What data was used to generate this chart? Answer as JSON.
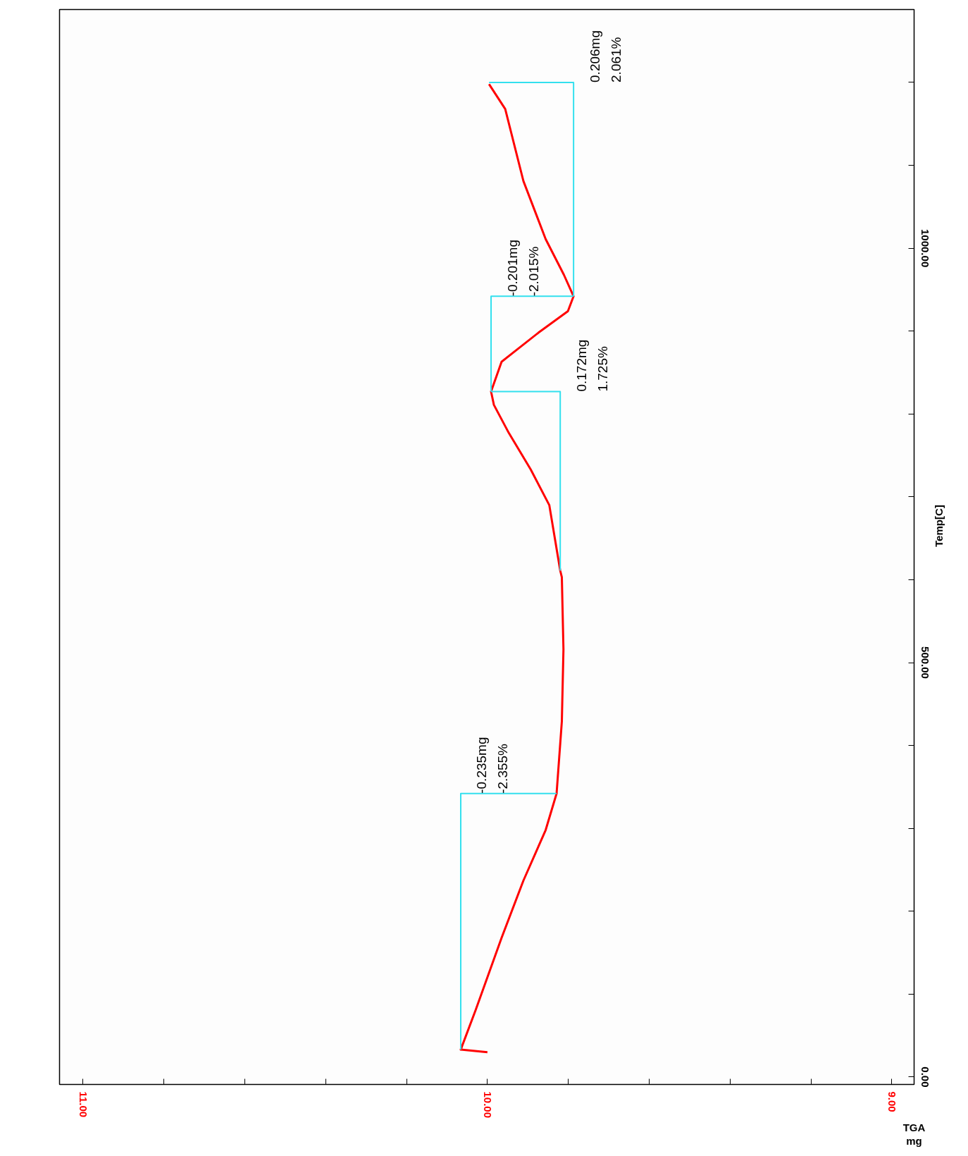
{
  "chart_data": {
    "type": "line",
    "xlabel": "TGA\nmg",
    "ylabel": "Temp[C]",
    "xlim": [
      11.058,
      8.945
    ],
    "ylim": [
      -9,
      1288
    ],
    "xticks": [
      {
        "value": 11,
        "label": "11.00"
      },
      {
        "value": 10.8,
        "label": null
      },
      {
        "value": 10.6,
        "label": null
      },
      {
        "value": 10.4,
        "label": null
      },
      {
        "value": 10.2,
        "label": null
      },
      {
        "value": 10,
        "label": "10.00"
      },
      {
        "value": 9.8,
        "label": null
      },
      {
        "value": 9.6,
        "label": null
      },
      {
        "value": 9.4,
        "label": null
      },
      {
        "value": 9.2,
        "label": null
      },
      {
        "value": 9,
        "label": "9.00"
      }
    ],
    "yticks": [
      {
        "value": 0,
        "label": "0.00"
      },
      {
        "value": 100,
        "label": null
      },
      {
        "value": 200,
        "label": null
      },
      {
        "value": 300,
        "label": null
      },
      {
        "value": 400,
        "label": null
      },
      {
        "value": 500,
        "label": "500.00"
      },
      {
        "value": 600,
        "label": null
      },
      {
        "value": 700,
        "label": null
      },
      {
        "value": 800,
        "label": null
      },
      {
        "value": 900,
        "label": null
      },
      {
        "value": 1000,
        "label": "1000.00"
      },
      {
        "value": 1100,
        "label": null
      },
      {
        "value": 1200,
        "label": null
      }
    ],
    "grid": false,
    "marker": "none",
    "line_style": "solid",
    "series": [
      {
        "color": "#ff0000",
        "x": [
          10.0,
          10.066,
          10.029,
          9.965,
          9.911,
          9.856,
          9.829,
          9.816,
          9.812,
          9.816,
          9.82,
          9.847,
          9.893,
          9.947,
          9.984,
          9.991,
          9.965,
          9.874,
          9.801,
          9.787,
          9.811,
          9.856,
          9.911,
          9.956,
          9.996
        ],
        "values": [
          30,
          33,
          81,
          168,
          237,
          298,
          342,
          429,
          516,
          603,
          611,
          690,
          733,
          777,
          811,
          827,
          863,
          898,
          924,
          942,
          968,
          1011,
          1081,
          1168,
          1198
        ]
      },
      {
        "color": "#33e0ee",
        "x": [
          10.066,
          10.066,
          9.829
        ],
        "values": [
          33,
          342,
          342
        ]
      },
      {
        "color": "#33e0ee",
        "x": [
          9.82,
          9.82,
          9.991
        ],
        "values": [
          611,
          827,
          827
        ]
      },
      {
        "color": "#33e0ee",
        "x": [
          9.991,
          9.991,
          9.787
        ],
        "values": [
          827,
          942,
          942
        ]
      },
      {
        "color": "#33e0ee",
        "x": [
          9.787,
          9.787,
          9.996
        ],
        "values": [
          942,
          1200,
          1200
        ]
      }
    ],
    "annotations": [
      "-0.235mg",
      "-2.355%",
      "0.172mg",
      "1.725%",
      "-0.201mg",
      "-2.015%",
      "0.206mg",
      "2.061%"
    ]
  }
}
